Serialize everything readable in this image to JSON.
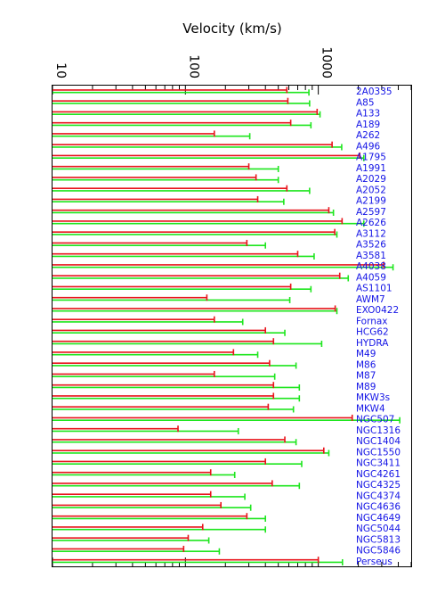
{
  "chart_data": {
    "type": "bar",
    "orientation": "horizontal",
    "title": "",
    "xlabel": "Velocity (km/s)",
    "ylabel": "",
    "xscale": "log",
    "xlim": [
      10,
      5000
    ],
    "xticks": [
      10,
      100,
      1000
    ],
    "xtick_labels": [
      "10",
      "100",
      "1000"
    ],
    "grid": false,
    "legend": "none",
    "colors": {
      "series_a": "#e8141b",
      "series_b": "#1ee61e",
      "labels": "#1414e6"
    },
    "categories": [
      "2A0335",
      "A85",
      "A133",
      "A189",
      "A262",
      "A496",
      "A1795",
      "A1991",
      "A2029",
      "A2052",
      "A2199",
      "A2597",
      "A2626",
      "A3112",
      "A3526",
      "A3581",
      "A4038",
      "A4059",
      "AS1101",
      "AWM7",
      "EXO0422",
      "Fornax",
      "HCG62",
      "HYDRA",
      "M49",
      "M86",
      "M87",
      "M89",
      "MKW3s",
      "MKW4",
      "NGC507",
      "NGC1316",
      "NGC1404",
      "NGC1550",
      "NGC3411",
      "NGC4261",
      "NGC4325",
      "NGC4374",
      "NGC4636",
      "NGC4649",
      "NGC5044",
      "NGC5813",
      "NGC5846",
      "Perseus"
    ],
    "series": [
      {
        "values": [
          580,
          590,
          980,
          620,
          165,
          1270,
          2050,
          300,
          340,
          580,
          350,
          1200,
          1510,
          1330,
          290,
          700,
          3100,
          1450,
          620,
          145,
          1340,
          165,
          400,
          460,
          230,
          430,
          165,
          460,
          460,
          420,
          1800,
          88,
          560,
          1100,
          400,
          155,
          450,
          155,
          185,
          290,
          135,
          105,
          97,
          1000
        ]
      },
      {
        "values": [
          850,
          860,
          1030,
          880,
          305,
          1500,
          2200,
          500,
          500,
          860,
          550,
          1300,
          2200,
          1380,
          400,
          930,
          3650,
          1680,
          880,
          610,
          1380,
          270,
          560,
          1060,
          350,
          680,
          470,
          720,
          720,
          650,
          4100,
          250,
          680,
          1200,
          750,
          235,
          720,
          280,
          310,
          400,
          400,
          150,
          180,
          1520
        ]
      }
    ]
  }
}
